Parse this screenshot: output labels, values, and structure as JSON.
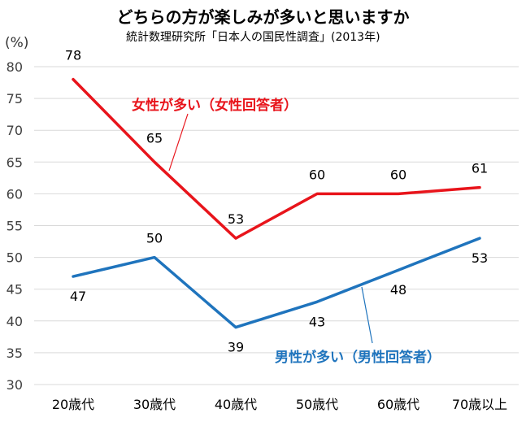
{
  "title": "どちらの方が楽しみが多いと思いますか",
  "subtitle": "統計数理研究所「日本人の国民性調査」(2013年)",
  "y_unit": "(%)",
  "colors": {
    "female": "#e8141b",
    "male": "#1f74bd",
    "grid": "#d9d9d9",
    "axis_text": "#404040"
  },
  "chart_data": {
    "type": "line",
    "title": "どちらの方が楽しみが多いと思いますか",
    "subtitle": "統計数理研究所「日本人の国民性調査」(2013年)",
    "ylabel": "(%)",
    "xlabel": "",
    "categories": [
      "20歳代",
      "30歳代",
      "40歳代",
      "50歳代",
      "60歳代",
      "70歳以上"
    ],
    "ylim": [
      30,
      80
    ],
    "yticks": [
      30,
      35,
      40,
      45,
      50,
      55,
      60,
      65,
      70,
      75,
      80
    ],
    "grid": true,
    "series": [
      {
        "key": "female",
        "name": "女性が多い（女性回答者）",
        "values": [
          78,
          65,
          53,
          60,
          60,
          61
        ],
        "data_labels": [
          "78",
          "65",
          "53",
          "60",
          "60",
          "61"
        ]
      },
      {
        "key": "male",
        "name": "男性が多い（男性回答者）",
        "values": [
          47,
          50,
          39,
          43,
          48,
          53
        ],
        "data_labels": [
          "47",
          "50",
          "39",
          "43",
          "48",
          "53"
        ]
      }
    ]
  }
}
